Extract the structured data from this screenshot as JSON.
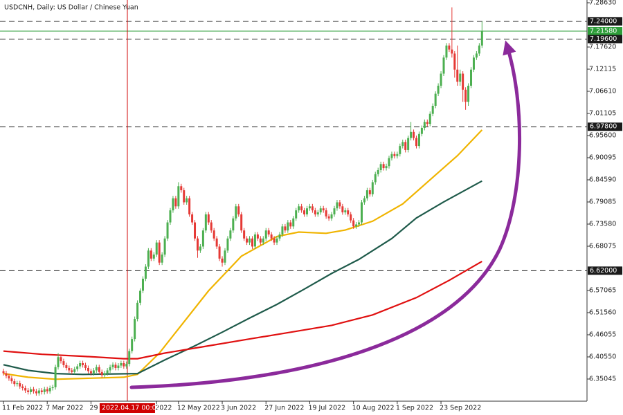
{
  "chart_data": {
    "type": "candlestick",
    "title": "USDCNH, Daily:  US Dollar / Chinese Yuan",
    "up_color": "#4caf50",
    "down_color": "#e53935",
    "xlim": [
      -1.27,
      213.4
    ],
    "ylim": [
      6.2954,
      7.2932
    ],
    "yticks": [
      {
        "value": 7.2863,
        "label": "7.28630"
      },
      {
        "value": 7.1762,
        "label": "7.17620"
      },
      {
        "value": 7.12115,
        "label": "7.12115"
      },
      {
        "value": 7.0661,
        "label": "7.06610"
      },
      {
        "value": 7.01105,
        "label": "7.01105"
      },
      {
        "value": 6.956,
        "label": "6.95600"
      },
      {
        "value": 6.90095,
        "label": "6.90095"
      },
      {
        "value": 6.8459,
        "label": "6.84590"
      },
      {
        "value": 6.79085,
        "label": "6.79085"
      },
      {
        "value": 6.7358,
        "label": "6.73580"
      },
      {
        "value": 6.68075,
        "label": "6.68075"
      },
      {
        "value": 6.57065,
        "label": "6.57065"
      },
      {
        "value": 6.5156,
        "label": "6.51560"
      },
      {
        "value": 6.46055,
        "label": "6.46055"
      },
      {
        "value": 6.4055,
        "label": "6.40550"
      },
      {
        "value": 6.35045,
        "label": "6.35045"
      }
    ],
    "xticks": [
      {
        "value": 0,
        "label": "11 Feb 2022"
      },
      {
        "value": 16,
        "label": "7 Mar 2022"
      },
      {
        "value": 32,
        "label": "29"
      },
      {
        "value": 56,
        "label": "2022"
      },
      {
        "value": 64,
        "label": "12 May 2022"
      },
      {
        "value": 80,
        "label": "3 Jun 2022"
      },
      {
        "value": 96,
        "label": "27 Jun 2022"
      },
      {
        "value": 112,
        "label": "19 Jul 2022"
      },
      {
        "value": 128,
        "label": "10 Aug 2022"
      },
      {
        "value": 144,
        "label": "1 Sep 2022"
      },
      {
        "value": 160,
        "label": "23 Sep 2022"
      }
    ],
    "levels": [
      {
        "value": 7.24,
        "label": "7.24000",
        "color": "#1a1a1a",
        "style": "dashed"
      },
      {
        "value": 7.2158,
        "label": "7.21580",
        "color": "#2e9e3a",
        "style": "solid"
      },
      {
        "value": 7.196,
        "label": "7.19600",
        "color": "#1a1a1a",
        "style": "dashed"
      },
      {
        "value": 6.978,
        "label": "6.97800",
        "color": "#1a1a1a",
        "style": "dashed"
      },
      {
        "value": 6.62,
        "label": "6.62000",
        "color": "#1a1a1a",
        "style": "dashed"
      }
    ],
    "vline": {
      "x": 45.3,
      "label": "2022.04.17 00:00",
      "color": "#d00000"
    },
    "series": [
      {
        "color": "#f0b400",
        "x": [
          0,
          9,
          19,
          44,
          49,
          57,
          65,
          75,
          87,
          100,
          108,
          118,
          125,
          135,
          146,
          156,
          166,
          175
        ],
        "values": [
          6.364,
          6.355,
          6.35,
          6.355,
          6.362,
          6.415,
          6.484,
          6.57,
          6.656,
          6.705,
          6.716,
          6.713,
          6.721,
          6.743,
          6.786,
          6.846,
          6.906,
          6.97
        ]
      },
      {
        "color": "#1e5a4a",
        "x": [
          0,
          9,
          19,
          29,
          49,
          59,
          70,
          80,
          90,
          100,
          110,
          120,
          130,
          142,
          151,
          161,
          175
        ],
        "values": [
          6.386,
          6.372,
          6.364,
          6.362,
          6.364,
          6.398,
          6.433,
          6.467,
          6.502,
          6.536,
          6.574,
          6.613,
          6.648,
          6.7,
          6.751,
          6.791,
          6.843
        ]
      },
      {
        "color": "#e01010",
        "x": [
          0,
          14,
          29,
          44,
          49,
          59,
          75,
          90,
          105,
          120,
          135,
          151,
          163,
          175
        ],
        "values": [
          6.42,
          6.412,
          6.407,
          6.401,
          6.401,
          6.415,
          6.433,
          6.45,
          6.467,
          6.484,
          6.51,
          6.553,
          6.596,
          6.643
        ]
      }
    ],
    "candles": [
      [
        6.37,
        6.376,
        6.359,
        6.365
      ],
      [
        6.365,
        6.371,
        6.352,
        6.358
      ],
      [
        6.358,
        6.364,
        6.346,
        6.352
      ],
      [
        6.352,
        6.358,
        6.339,
        6.345
      ],
      [
        6.345,
        6.351,
        6.332,
        6.338
      ],
      [
        6.338,
        6.346,
        6.332,
        6.34
      ],
      [
        6.34,
        6.346,
        6.326,
        6.332
      ],
      [
        6.332,
        6.338,
        6.322,
        6.328
      ],
      [
        6.328,
        6.334,
        6.316,
        6.322
      ],
      [
        6.322,
        6.328,
        6.312,
        6.318
      ],
      [
        6.318,
        6.331,
        6.312,
        6.325
      ],
      [
        6.325,
        6.331,
        6.314,
        6.32
      ],
      [
        6.32,
        6.326,
        6.309,
        6.315
      ],
      [
        6.315,
        6.328,
        6.309,
        6.322
      ],
      [
        6.322,
        6.328,
        6.312,
        6.318
      ],
      [
        6.318,
        6.331,
        6.312,
        6.325
      ],
      [
        6.325,
        6.331,
        6.314,
        6.32
      ],
      [
        6.32,
        6.334,
        6.314,
        6.328
      ],
      [
        6.328,
        6.336,
        6.322,
        6.33
      ],
      [
        6.33,
        6.386,
        6.324,
        6.38
      ],
      [
        6.38,
        6.415,
        6.374,
        6.405
      ],
      [
        6.405,
        6.411,
        6.389,
        6.395
      ],
      [
        6.395,
        6.401,
        6.379,
        6.385
      ],
      [
        6.385,
        6.391,
        6.372,
        6.378
      ],
      [
        6.378,
        6.384,
        6.366,
        6.372
      ],
      [
        6.372,
        6.378,
        6.362,
        6.368
      ],
      [
        6.368,
        6.381,
        6.362,
        6.375
      ],
      [
        6.375,
        6.388,
        6.369,
        6.382
      ],
      [
        6.382,
        6.396,
        6.376,
        6.39
      ],
      [
        6.39,
        6.396,
        6.379,
        6.385
      ],
      [
        6.385,
        6.391,
        6.372,
        6.378
      ],
      [
        6.378,
        6.384,
        6.364,
        6.37
      ],
      [
        6.37,
        6.376,
        6.359,
        6.365
      ],
      [
        6.365,
        6.378,
        6.359,
        6.372
      ],
      [
        6.372,
        6.386,
        6.366,
        6.38
      ],
      [
        6.38,
        6.386,
        6.362,
        6.368
      ],
      [
        6.368,
        6.374,
        6.354,
        6.36
      ],
      [
        6.36,
        6.371,
        6.354,
        6.365
      ],
      [
        6.365,
        6.378,
        6.359,
        6.372
      ],
      [
        6.372,
        6.386,
        6.366,
        6.38
      ],
      [
        6.38,
        6.392,
        6.374,
        6.386
      ],
      [
        6.386,
        6.392,
        6.372,
        6.378
      ],
      [
        6.378,
        6.39,
        6.372,
        6.384
      ],
      [
        6.384,
        6.396,
        6.378,
        6.39
      ],
      [
        6.39,
        6.396,
        6.376,
        6.382
      ],
      [
        6.382,
        6.394,
        6.376,
        6.388
      ],
      [
        6.388,
        6.426,
        6.382,
        6.42
      ],
      [
        6.42,
        6.456,
        6.414,
        6.45
      ],
      [
        6.45,
        6.506,
        6.444,
        6.5
      ],
      [
        6.5,
        6.546,
        6.494,
        6.54
      ],
      [
        6.54,
        6.576,
        6.534,
        6.57
      ],
      [
        6.57,
        6.606,
        6.564,
        6.6
      ],
      [
        6.6,
        6.636,
        6.594,
        6.63
      ],
      [
        6.63,
        6.676,
        6.624,
        6.67
      ],
      [
        6.67,
        6.676,
        6.644,
        6.65
      ],
      [
        6.65,
        6.666,
        6.644,
        6.66
      ],
      [
        6.66,
        6.696,
        6.654,
        6.69
      ],
      [
        6.69,
        6.696,
        6.634,
        6.64
      ],
      [
        6.64,
        6.666,
        6.634,
        6.66
      ],
      [
        6.66,
        6.706,
        6.654,
        6.7
      ],
      [
        6.7,
        6.746,
        6.694,
        6.74
      ],
      [
        6.74,
        6.776,
        6.734,
        6.77
      ],
      [
        6.77,
        6.806,
        6.764,
        6.8
      ],
      [
        6.8,
        6.806,
        6.774,
        6.78
      ],
      [
        6.78,
        6.84,
        6.774,
        6.83
      ],
      [
        6.83,
        6.836,
        6.814,
        6.82
      ],
      [
        6.82,
        6.826,
        6.784,
        6.79
      ],
      [
        6.79,
        6.806,
        6.784,
        6.8
      ],
      [
        6.8,
        6.806,
        6.754,
        6.76
      ],
      [
        6.76,
        6.766,
        6.734,
        6.74
      ],
      [
        6.74,
        6.746,
        6.694,
        6.7
      ],
      [
        6.7,
        6.706,
        6.652,
        6.67
      ],
      [
        6.67,
        6.686,
        6.664,
        6.68
      ],
      [
        6.68,
        6.726,
        6.674,
        6.72
      ],
      [
        6.72,
        6.766,
        6.714,
        6.76
      ],
      [
        6.76,
        6.766,
        6.734,
        6.74
      ],
      [
        6.74,
        6.746,
        6.714,
        6.72
      ],
      [
        6.72,
        6.726,
        6.694,
        6.7
      ],
      [
        6.7,
        6.706,
        6.674,
        6.68
      ],
      [
        6.68,
        6.686,
        6.644,
        6.65
      ],
      [
        6.65,
        6.656,
        6.63,
        6.64
      ],
      [
        6.64,
        6.676,
        6.634,
        6.67
      ],
      [
        6.67,
        6.706,
        6.664,
        6.7
      ],
      [
        6.7,
        6.726,
        6.694,
        6.72
      ],
      [
        6.72,
        6.756,
        6.714,
        6.75
      ],
      [
        6.75,
        6.786,
        6.744,
        6.78
      ],
      [
        6.78,
        6.786,
        6.754,
        6.76
      ],
      [
        6.76,
        6.766,
        6.714,
        6.72
      ],
      [
        6.72,
        6.726,
        6.694,
        6.7
      ],
      [
        6.7,
        6.706,
        6.684,
        6.69
      ],
      [
        6.69,
        6.706,
        6.684,
        6.7
      ],
      [
        6.7,
        6.706,
        6.674,
        6.68
      ],
      [
        6.68,
        6.716,
        6.674,
        6.71
      ],
      [
        6.71,
        6.716,
        6.694,
        6.7
      ],
      [
        6.7,
        6.706,
        6.684,
        6.69
      ],
      [
        6.69,
        6.706,
        6.684,
        6.7
      ],
      [
        6.7,
        6.726,
        6.694,
        6.72
      ],
      [
        6.72,
        6.726,
        6.704,
        6.71
      ],
      [
        6.71,
        6.716,
        6.694,
        6.7
      ],
      [
        6.7,
        6.706,
        6.684,
        6.69
      ],
      [
        6.69,
        6.706,
        6.684,
        6.7
      ],
      [
        6.7,
        6.716,
        6.694,
        6.71
      ],
      [
        6.71,
        6.736,
        6.704,
        6.73
      ],
      [
        6.73,
        6.736,
        6.714,
        6.72
      ],
      [
        6.72,
        6.746,
        6.714,
        6.74
      ],
      [
        6.74,
        6.746,
        6.724,
        6.73
      ],
      [
        6.73,
        6.756,
        6.724,
        6.75
      ],
      [
        6.75,
        6.776,
        6.744,
        6.77
      ],
      [
        6.77,
        6.786,
        6.764,
        6.78
      ],
      [
        6.78,
        6.786,
        6.764,
        6.77
      ],
      [
        6.77,
        6.776,
        6.754,
        6.76
      ],
      [
        6.76,
        6.781,
        6.754,
        6.775
      ],
      [
        6.775,
        6.786,
        6.769,
        6.78
      ],
      [
        6.78,
        6.786,
        6.764,
        6.77
      ],
      [
        6.77,
        6.776,
        6.754,
        6.76
      ],
      [
        6.76,
        6.771,
        6.754,
        6.765
      ],
      [
        6.765,
        6.781,
        6.759,
        6.775
      ],
      [
        6.775,
        6.781,
        6.764,
        6.77
      ],
      [
        6.77,
        6.776,
        6.749,
        6.755
      ],
      [
        6.755,
        6.761,
        6.744,
        6.75
      ],
      [
        6.75,
        6.766,
        6.744,
        6.76
      ],
      [
        6.76,
        6.781,
        6.754,
        6.775
      ],
      [
        6.775,
        6.796,
        6.769,
        6.79
      ],
      [
        6.79,
        6.796,
        6.774,
        6.78
      ],
      [
        6.78,
        6.786,
        6.759,
        6.765
      ],
      [
        6.765,
        6.776,
        6.759,
        6.77
      ],
      [
        6.77,
        6.776,
        6.754,
        6.76
      ],
      [
        6.76,
        6.766,
        6.739,
        6.745
      ],
      [
        6.745,
        6.751,
        6.724,
        6.73
      ],
      [
        6.73,
        6.741,
        6.724,
        6.735
      ],
      [
        6.735,
        6.746,
        6.729,
        6.74
      ],
      [
        6.74,
        6.796,
        6.734,
        6.79
      ],
      [
        6.79,
        6.806,
        6.784,
        6.8
      ],
      [
        6.8,
        6.826,
        6.794,
        6.82
      ],
      [
        6.82,
        6.826,
        6.804,
        6.81
      ],
      [
        6.81,
        6.846,
        6.804,
        6.84
      ],
      [
        6.84,
        6.866,
        6.834,
        6.86
      ],
      [
        6.86,
        6.876,
        6.854,
        6.87
      ],
      [
        6.87,
        6.891,
        6.864,
        6.885
      ],
      [
        6.885,
        6.891,
        6.869,
        6.875
      ],
      [
        6.875,
        6.886,
        6.869,
        6.88
      ],
      [
        6.88,
        6.906,
        6.874,
        6.9
      ],
      [
        6.9,
        6.916,
        6.894,
        6.91
      ],
      [
        6.91,
        6.916,
        6.899,
        6.905
      ],
      [
        6.905,
        6.916,
        6.899,
        6.91
      ],
      [
        6.91,
        6.936,
        6.904,
        6.93
      ],
      [
        6.93,
        6.946,
        6.924,
        6.94
      ],
      [
        6.94,
        6.946,
        6.914,
        6.92
      ],
      [
        6.92,
        6.956,
        6.914,
        6.95
      ],
      [
        6.95,
        6.99,
        6.944,
        6.965
      ],
      [
        6.965,
        6.971,
        6.944,
        6.95
      ],
      [
        6.95,
        6.956,
        6.924,
        6.93
      ],
      [
        6.93,
        6.966,
        6.924,
        6.96
      ],
      [
        6.96,
        6.981,
        6.954,
        6.975
      ],
      [
        6.975,
        6.996,
        6.969,
        6.99
      ],
      [
        6.99,
        6.996,
        6.979,
        6.985
      ],
      [
        6.985,
        7.016,
        6.979,
        7.01
      ],
      [
        7.01,
        7.036,
        7.004,
        7.03
      ],
      [
        7.03,
        7.066,
        7.024,
        7.06
      ],
      [
        7.06,
        7.086,
        7.054,
        7.08
      ],
      [
        7.08,
        7.116,
        7.074,
        7.11
      ],
      [
        7.11,
        7.156,
        7.104,
        7.15
      ],
      [
        7.15,
        7.186,
        7.144,
        7.18
      ],
      [
        7.18,
        7.186,
        7.164,
        7.17
      ],
      [
        7.17,
        7.275,
        7.15,
        7.16
      ],
      [
        7.16,
        7.166,
        7.1,
        7.12
      ],
      [
        7.12,
        7.18,
        7.08,
        7.09
      ],
      [
        7.09,
        7.12,
        7.08,
        7.11
      ],
      [
        7.11,
        7.116,
        7.04,
        7.07
      ],
      [
        7.07,
        7.076,
        7.02,
        7.04
      ],
      [
        7.04,
        7.086,
        7.03,
        7.08
      ],
      [
        7.08,
        7.126,
        7.074,
        7.12
      ],
      [
        7.12,
        7.156,
        7.114,
        7.15
      ],
      [
        7.15,
        7.166,
        7.144,
        7.16
      ],
      [
        7.16,
        7.186,
        7.154,
        7.18
      ],
      [
        7.18,
        7.24,
        7.174,
        7.216
      ]
    ]
  }
}
